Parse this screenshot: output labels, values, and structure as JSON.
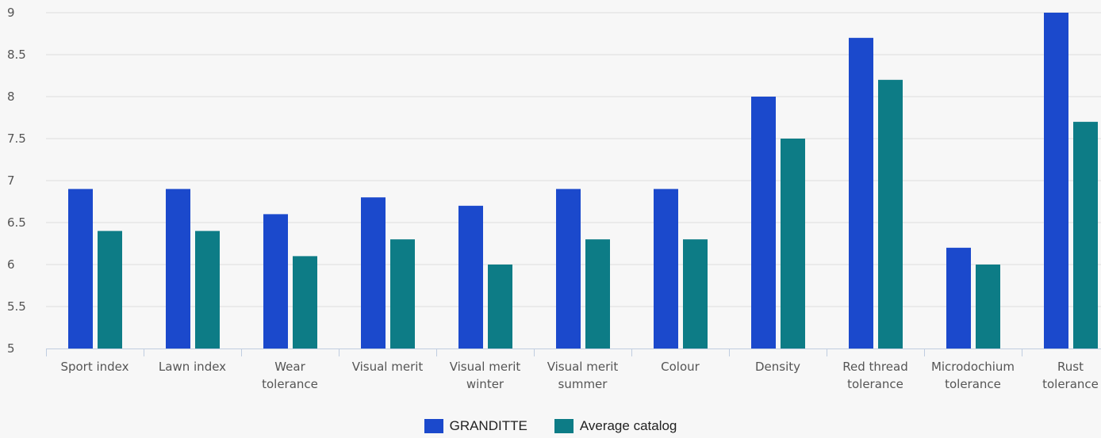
{
  "chart_data": {
    "type": "bar",
    "categories": [
      [
        "Sport index"
      ],
      [
        "Lawn index"
      ],
      [
        "Wear",
        "tolerance"
      ],
      [
        "Visual merit"
      ],
      [
        "Visual merit",
        "winter"
      ],
      [
        "Visual merit",
        "summer"
      ],
      [
        "Colour"
      ],
      [
        "Density"
      ],
      [
        "Red thread",
        "tolerance"
      ],
      [
        "Microdochium",
        "tolerance"
      ],
      [
        "Rust",
        "tolerance"
      ]
    ],
    "series": [
      {
        "name": "GRANDITTE",
        "color": "#1b49cc",
        "values": [
          6.9,
          6.9,
          6.6,
          6.8,
          6.7,
          6.9,
          6.9,
          8.0,
          8.7,
          6.2,
          9.0
        ]
      },
      {
        "name": "Average catalog",
        "color": "#0d7c86",
        "values": [
          6.4,
          6.4,
          6.1,
          6.3,
          6.0,
          6.3,
          6.3,
          7.5,
          8.2,
          6.0,
          7.7
        ]
      }
    ],
    "ylim": [
      5,
      9
    ],
    "yticks": [
      "5",
      "5.5",
      "6",
      "6.5",
      "7",
      "7.5",
      "8",
      "8.5",
      "9"
    ],
    "grid": true,
    "legend_position": "bottom-center"
  }
}
